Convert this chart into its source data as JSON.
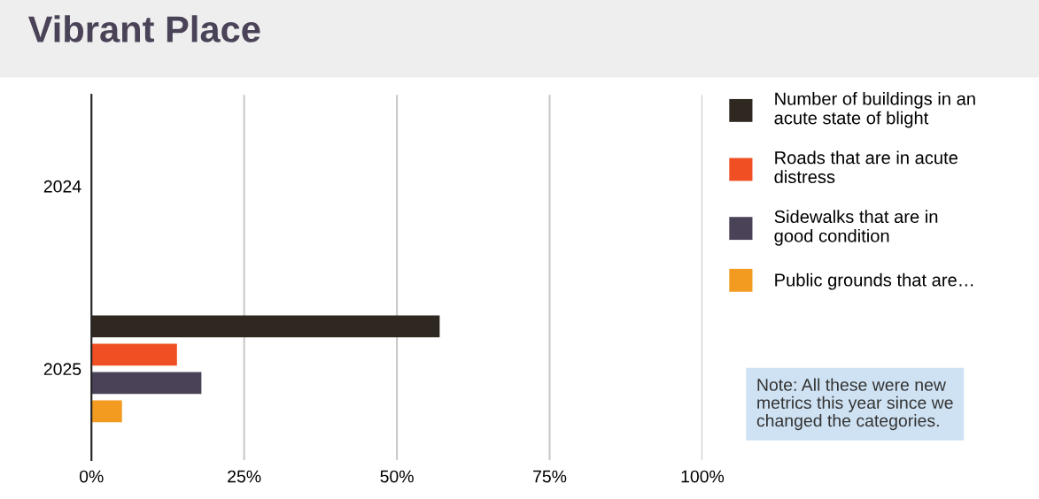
{
  "chart_data": {
    "type": "bar",
    "orientation": "horizontal",
    "title": "Vibrant Place",
    "categories": [
      "2024",
      "2025"
    ],
    "series": [
      {
        "name": "Number of buildings in an\nacute state of blight",
        "color": "#2e2820",
        "values": [
          null,
          57
        ]
      },
      {
        "name": "Roads that are in acute\ndistress",
        "color": "#f04e23",
        "values": [
          null,
          14
        ]
      },
      {
        "name": "Sidewalks that are in\ngood condition",
        "color": "#4a4257",
        "values": [
          null,
          18
        ]
      },
      {
        "name": "Public grounds that are…",
        "color": "#f39a20",
        "values": [
          null,
          5
        ]
      }
    ],
    "xlim": [
      0,
      100
    ],
    "xticks": [
      {
        "value": 0,
        "label": "0%"
      },
      {
        "value": 25,
        "label": "25%"
      },
      {
        "value": 50,
        "label": "50%"
      },
      {
        "value": 75,
        "label": "75%"
      },
      {
        "value": 100,
        "label": "100%"
      }
    ],
    "grid": "x",
    "legend": "right",
    "annotations": [
      "Note: All these were new\nmetrics this year since we\nchanged the categories."
    ]
  }
}
